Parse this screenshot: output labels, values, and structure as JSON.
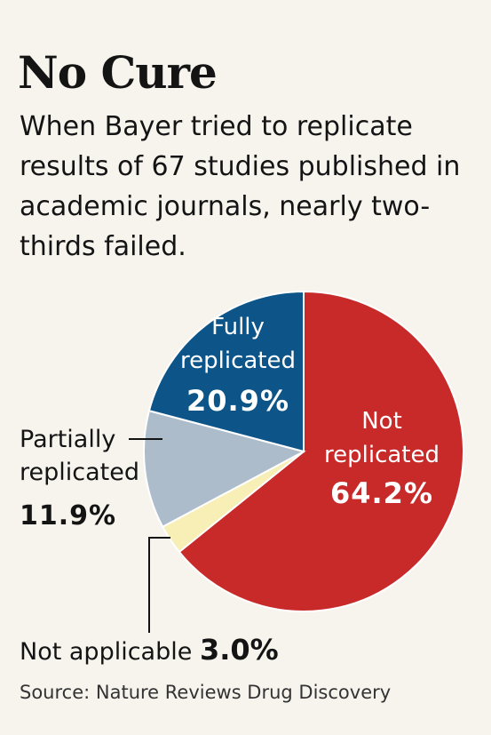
{
  "title": "No Cure",
  "subtitle": "When Bayer tried to replicate results of 67 studies published in academic journals, nearly two-thirds failed.",
  "source": "Source: Nature Reviews Drug Discovery",
  "chart_data": {
    "type": "pie",
    "slices": [
      {
        "label_lines": [
          "Not",
          "replicated"
        ],
        "value": 64.2,
        "value_label": "64.2%",
        "color": "#c82a2a"
      },
      {
        "label_lines": [
          "Not applicable"
        ],
        "value": 3.0,
        "value_label": "3.0%",
        "color": "#f7efb6"
      },
      {
        "label_lines": [
          "Partially",
          "replicated"
        ],
        "value": 11.9,
        "value_label": "11.9%",
        "color": "#adbccb"
      },
      {
        "label_lines": [
          "Fully",
          "replicated"
        ],
        "value": 20.9,
        "value_label": "20.9%",
        "color": "#0d5588"
      }
    ],
    "start_angle": "12 o'clock",
    "direction": "clockwise"
  }
}
